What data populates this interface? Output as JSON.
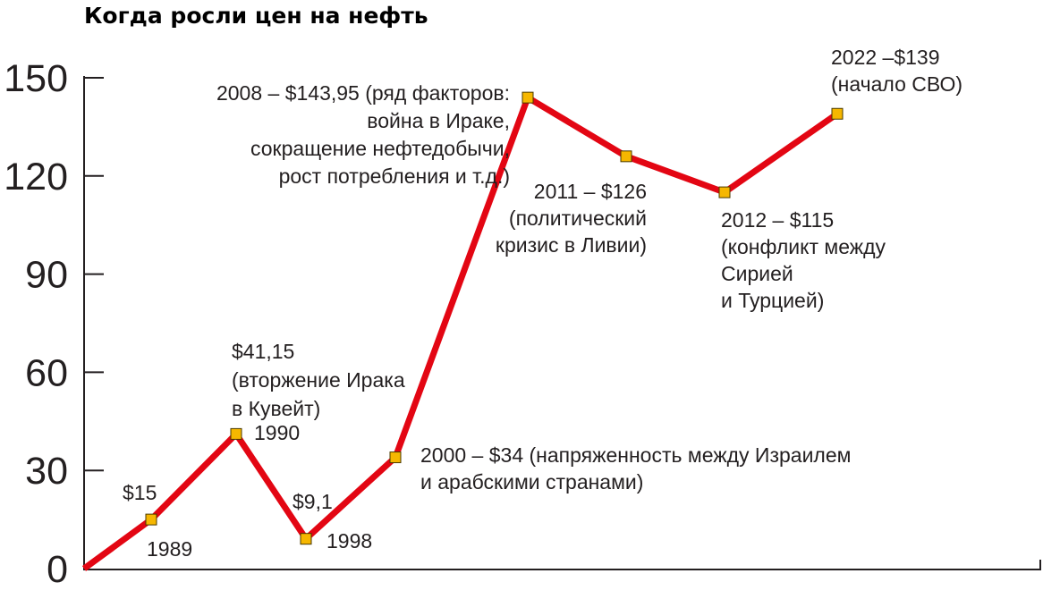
{
  "chart_data": {
    "type": "line",
    "title": "Когда росли цен на нефть",
    "xlabel": "",
    "ylabel": "",
    "ylim": [
      0,
      150
    ],
    "yticks": [
      0,
      30,
      60,
      90,
      120,
      150
    ],
    "ytick_labels": [
      "0",
      "30",
      "60",
      "90",
      "120",
      "150"
    ],
    "grid": false,
    "line_color": "#e30613",
    "marker_color": "#f6b700",
    "series": [
      {
        "points": [
          {
            "year": null,
            "y": 0
          },
          {
            "year": 1989,
            "y": 15
          },
          {
            "year": 1990,
            "y": 41.15
          },
          {
            "year": 1998,
            "y": 9.1
          },
          {
            "year": 2000,
            "y": 34
          },
          {
            "year": 2008,
            "y": 143.95
          },
          {
            "year": 2011,
            "y": 126
          },
          {
            "year": 2012,
            "y": 115
          },
          {
            "year": 2022,
            "y": 139
          }
        ]
      }
    ],
    "annotations": [
      {
        "id": "p1989-price",
        "lines": [
          "$15"
        ]
      },
      {
        "id": "p1989-year",
        "lines": [
          "1989"
        ]
      },
      {
        "id": "p1990-price",
        "lines": [
          "$41,15",
          "(вторжение Ирака",
          "в Кувейт)"
        ]
      },
      {
        "id": "p1990-year",
        "lines": [
          "1990"
        ]
      },
      {
        "id": "p1998-price",
        "lines": [
          "$9,1"
        ]
      },
      {
        "id": "p1998-year",
        "lines": [
          "1998"
        ]
      },
      {
        "id": "p2000",
        "lines": [
          "2000 – $34 (напряженность между Израилем",
          "и арабскими странами)"
        ]
      },
      {
        "id": "p2008",
        "lines": [
          "2008 – $143,95 (ряд факторов:",
          "война в Ираке,",
          "сокращение нефтедобычи,",
          "рост потребления и т.д.)"
        ]
      },
      {
        "id": "p2011",
        "lines": [
          "2011 – $126",
          "(политический",
          "кризис в Ливии)"
        ]
      },
      {
        "id": "p2012",
        "lines": [
          "2012 – $115",
          "(конфликт между",
          "Сирией",
          "и Турцией)"
        ]
      },
      {
        "id": "p2022",
        "lines": [
          "2022 –$139",
          "(начало СВО)"
        ]
      }
    ]
  }
}
